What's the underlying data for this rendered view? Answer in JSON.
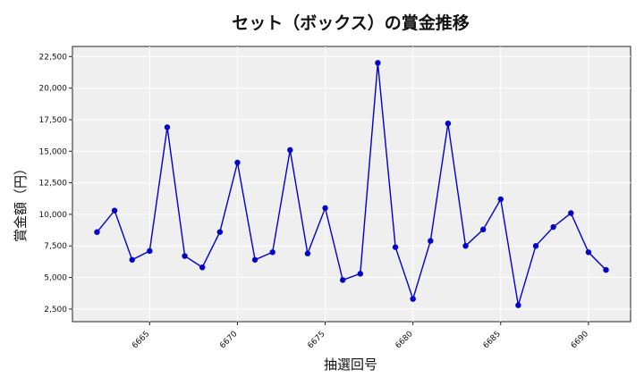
{
  "chart_data": {
    "type": "line",
    "title": "セット（ボックス）の賞金推移",
    "xlabel": "抽選回号",
    "ylabel": "賞金額（円）",
    "grid": true,
    "xlim": [
      6660.6,
      6692.4
    ],
    "ylim": [
      1500,
      23300
    ],
    "xticks": [
      6665,
      6670,
      6675,
      6680,
      6685,
      6690
    ],
    "yticks": [
      2500,
      5000,
      7500,
      10000,
      12500,
      15000,
      17500,
      20000,
      22500
    ],
    "ytick_labels": [
      "2,500",
      "5,000",
      "7,500",
      "10,000",
      "12,500",
      "15,000",
      "17,500",
      "20,000",
      "22,500"
    ],
    "series": [
      {
        "color": "#0000cc",
        "x": [
          6662,
          6663,
          6664,
          6665,
          6666,
          6667,
          6668,
          6669,
          6670,
          6671,
          6672,
          6673,
          6674,
          6675,
          6676,
          6677,
          6678,
          6679,
          6680,
          6681,
          6682,
          6683,
          6684,
          6685,
          6686,
          6687,
          6688,
          6689,
          6690,
          6691
        ],
        "values": [
          8600,
          10300,
          6400,
          7100,
          16900,
          6700,
          5800,
          8600,
          14100,
          6400,
          7000,
          15100,
          6900,
          10500,
          4800,
          5300,
          22000,
          7400,
          3300,
          7900,
          17200,
          7500,
          8800,
          11200,
          2800,
          7500,
          9000,
          10100,
          7000,
          5600
        ]
      }
    ]
  }
}
